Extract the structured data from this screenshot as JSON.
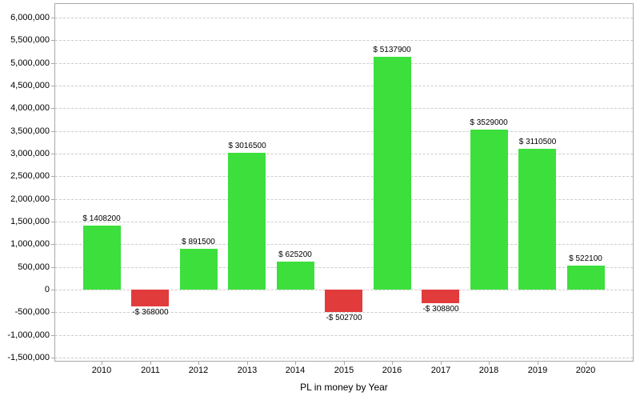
{
  "chart_data": {
    "type": "bar",
    "title": "",
    "xlabel": "PL in money by Year",
    "ylabel": "",
    "categories": [
      "2010",
      "2011",
      "2012",
      "2013",
      "2014",
      "2015",
      "2016",
      "2017",
      "2018",
      "2019",
      "2020"
    ],
    "values": [
      1408200,
      -368000,
      891500,
      3016500,
      625200,
      -502700,
      5137900,
      -308800,
      3529000,
      3110500,
      522100
    ],
    "value_labels": [
      "$ 1408200",
      "-$ 368000",
      "$ 891500",
      "$ 3016500",
      "$ 625200",
      "-$ 502700",
      "$ 5137900",
      "-$ 308800",
      "$ 3529000",
      "$ 3110500",
      "$ 522100"
    ],
    "ylim": [
      -1500000,
      6000000
    ],
    "ytick_step": 500000,
    "ytick_labels": [
      "6,000,000",
      "5,500,000",
      "5,000,000",
      "4,500,000",
      "4,000,000",
      "3,500,000",
      "3,000,000",
      "2,500,000",
      "2,000,000",
      "1,500,000",
      "1,000,000",
      "500,000",
      "0",
      "-500,000",
      "-1,000,000",
      "-1,500,000"
    ],
    "grid": "horizontal-dashed",
    "legend": "none",
    "colors": {
      "positive_bar": "#3DDF3D",
      "negative_bar": "#E23B3C",
      "grid_line": "#cccccc",
      "plot_border": "#a9a9a9",
      "text": "#000000",
      "background": "#ffffff"
    }
  }
}
